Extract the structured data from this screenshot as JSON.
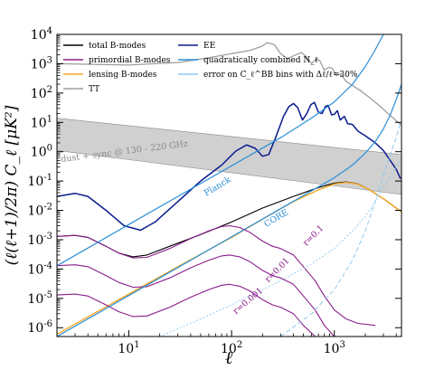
{
  "chart_data": {
    "type": "line",
    "xscale": "log",
    "yscale": "log",
    "xlim": [
      2,
      4500
    ],
    "ylim": [
      5e-07,
      10000
    ],
    "xlabel": "ℓ",
    "ylabel": "(ℓ(ℓ+1)/2π) C_ℓ [μK²]",
    "x_ticks": [
      {
        "value": 10,
        "base": "10",
        "exp": "1"
      },
      {
        "value": 100,
        "base": "10",
        "exp": "2"
      },
      {
        "value": 1000,
        "base": "10",
        "exp": "3"
      }
    ],
    "y_ticks": [
      {
        "value": 1e-06,
        "base": "10",
        "exp": "-6"
      },
      {
        "value": 1e-05,
        "base": "10",
        "exp": "-5"
      },
      {
        "value": 0.0001,
        "base": "10",
        "exp": "-4"
      },
      {
        "value": 0.001,
        "base": "10",
        "exp": "-3"
      },
      {
        "value": 0.01,
        "base": "10",
        "exp": "-2"
      },
      {
        "value": 0.1,
        "base": "10",
        "exp": "-1"
      },
      {
        "value": 1,
        "base": "10",
        "exp": "0"
      },
      {
        "value": 10,
        "base": "10",
        "exp": "1"
      },
      {
        "value": 100,
        "base": "10",
        "exp": "2"
      },
      {
        "value": 1000,
        "base": "10",
        "exp": "3"
      },
      {
        "value": 10000,
        "base": "10",
        "exp": "4"
      }
    ],
    "legend": {
      "placement": "top-left",
      "entries": [
        {
          "label": "total B-modes",
          "color": "#000000",
          "style": "solid"
        },
        {
          "label": "primordial B-modes",
          "color": "#8b1c8b",
          "style": "solid"
        },
        {
          "label": "lensing B-modes",
          "color": "#f5a623",
          "style": "solid"
        },
        {
          "label": "TT",
          "color": "#9e9e9e",
          "style": "solid"
        },
        {
          "label": "EE",
          "color": "#0a1a8c",
          "style": "solid"
        },
        {
          "label": "quadratically combined N_ℓ",
          "color": "#2a8fd8",
          "style": "solid"
        },
        {
          "label": "error on C_ℓ^BB bins with Δℓ/ℓ=30%",
          "color": "#8ec8f0",
          "style": "solid"
        }
      ]
    },
    "foreground_band": {
      "label": "dust + sync @ 130 - 220 GHz",
      "upper": [
        [
          2,
          14
        ],
        [
          4500,
          0.8
        ]
      ],
      "lower": [
        [
          2,
          1.1
        ],
        [
          4500,
          0.035
        ]
      ],
      "color": "#d0d0d0"
    },
    "series": [
      {
        "name": "TT",
        "color": "#9e9e9e",
        "width": 1.3,
        "points": [
          [
            2,
            1000
          ],
          [
            10,
            900
          ],
          [
            30,
            1100
          ],
          [
            60,
            1600
          ],
          [
            100,
            2200
          ],
          [
            150,
            2800
          ],
          [
            200,
            4000
          ],
          [
            220,
            5200
          ],
          [
            260,
            4500
          ],
          [
            300,
            2200
          ],
          [
            350,
            1500
          ],
          [
            420,
            2000
          ],
          [
            480,
            2400
          ],
          [
            540,
            1700
          ],
          [
            600,
            1000
          ],
          [
            660,
            1400
          ],
          [
            720,
            1300
          ],
          [
            800,
            600
          ],
          [
            880,
            750
          ],
          [
            950,
            700
          ],
          [
            1050,
            400
          ],
          [
            1150,
            450
          ],
          [
            1300,
            250
          ],
          [
            1500,
            180
          ],
          [
            1800,
            120
          ],
          [
            2200,
            70
          ],
          [
            2800,
            35
          ],
          [
            3500,
            17
          ],
          [
            4500,
            8
          ]
        ]
      },
      {
        "name": "EE",
        "color": "#0a1a8c",
        "width": 1.5,
        "points": [
          [
            2,
            0.03
          ],
          [
            3,
            0.038
          ],
          [
            4,
            0.03
          ],
          [
            6,
            0.01
          ],
          [
            9,
            0.003
          ],
          [
            13,
            0.0021
          ],
          [
            18,
            0.004
          ],
          [
            30,
            0.02
          ],
          [
            50,
            0.1
          ],
          [
            80,
            0.35
          ],
          [
            110,
            1.05
          ],
          [
            140,
            1.7
          ],
          [
            170,
            1.3
          ],
          [
            200,
            0.7
          ],
          [
            230,
            0.8
          ],
          [
            270,
            3.2
          ],
          [
            320,
            16
          ],
          [
            360,
            34
          ],
          [
            400,
            44
          ],
          [
            440,
            32
          ],
          [
            490,
            12
          ],
          [
            540,
            20
          ],
          [
            590,
            40
          ],
          [
            640,
            48
          ],
          [
            700,
            22
          ],
          [
            760,
            20
          ],
          [
            820,
            35
          ],
          [
            870,
            38
          ],
          [
            940,
            18
          ],
          [
            1000,
            19
          ],
          [
            1070,
            25
          ],
          [
            1140,
            12
          ],
          [
            1250,
            16
          ],
          [
            1350,
            9
          ],
          [
            1500,
            8.5
          ],
          [
            1700,
            5
          ],
          [
            2000,
            3.5
          ],
          [
            2500,
            2
          ],
          [
            3000,
            1.1
          ],
          [
            3500,
            0.5
          ],
          [
            4000,
            0.25
          ],
          [
            4400,
            0.12
          ]
        ]
      },
      {
        "name": "total B-modes",
        "color": "#000000",
        "width": 1.1,
        "points": [
          [
            2,
            0.0013
          ],
          [
            3,
            0.0014
          ],
          [
            4,
            0.0012
          ],
          [
            6,
            0.0006
          ],
          [
            8,
            0.00035
          ],
          [
            11,
            0.00026
          ],
          [
            15,
            0.0003
          ],
          [
            25,
            0.0006
          ],
          [
            50,
            0.0015
          ],
          [
            100,
            0.004
          ],
          [
            200,
            0.012
          ],
          [
            400,
            0.03
          ],
          [
            700,
            0.06
          ],
          [
            1000,
            0.085
          ],
          [
            1300,
            0.093
          ],
          [
            1700,
            0.08
          ],
          [
            2200,
            0.05
          ],
          [
            3000,
            0.025
          ],
          [
            4000,
            0.012
          ],
          [
            4500,
            0.009
          ]
        ]
      },
      {
        "name": "lensing B-modes",
        "color": "#f5a623",
        "width": 1.4,
        "points": [
          [
            2,
            6e-07
          ],
          [
            10,
            1.4e-05
          ],
          [
            30,
            0.00012
          ],
          [
            100,
            0.0012
          ],
          [
            200,
            0.005
          ],
          [
            400,
            0.02
          ],
          [
            700,
            0.05
          ],
          [
            1000,
            0.08
          ],
          [
            1300,
            0.09
          ],
          [
            1700,
            0.078
          ],
          [
            2200,
            0.05
          ],
          [
            3000,
            0.025
          ],
          [
            4000,
            0.012
          ],
          [
            4500,
            0.009
          ]
        ]
      },
      {
        "name": "primordial B-modes",
        "label": "r=0.1",
        "color": "#8b1c8b",
        "width": 1.1,
        "points": [
          [
            2,
            0.0013
          ],
          [
            3,
            0.0014
          ],
          [
            4,
            0.0012
          ],
          [
            6,
            0.0006
          ],
          [
            8,
            0.00035
          ],
          [
            11,
            0.00024
          ],
          [
            15,
            0.00025
          ],
          [
            25,
            0.0005
          ],
          [
            40,
            0.0011
          ],
          [
            60,
            0.002
          ],
          [
            80,
            0.0028
          ],
          [
            95,
            0.003
          ],
          [
            120,
            0.0026
          ],
          [
            150,
            0.0018
          ],
          [
            200,
            0.0009
          ],
          [
            250,
            0.0006
          ],
          [
            300,
            0.0005
          ],
          [
            400,
            0.0003
          ],
          [
            500,
            0.00012
          ],
          [
            650,
            4e-05
          ],
          [
            800,
            1.2e-05
          ],
          [
            1000,
            4e-06
          ],
          [
            1300,
            2e-06
          ],
          [
            1700,
            1.4e-06
          ],
          [
            2500,
            1.2e-06
          ]
        ]
      },
      {
        "name": "primordial B-modes",
        "label": "r=0.01",
        "color": "#8b1c8b",
        "width": 1.1,
        "points": [
          [
            2,
            0.00013
          ],
          [
            3,
            0.00014
          ],
          [
            4,
            0.00012
          ],
          [
            6,
            6e-05
          ],
          [
            8,
            3.5e-05
          ],
          [
            11,
            2.4e-05
          ],
          [
            15,
            2.5e-05
          ],
          [
            25,
            5e-05
          ],
          [
            40,
            0.00011
          ],
          [
            60,
            0.0002
          ],
          [
            80,
            0.00028
          ],
          [
            95,
            0.0003
          ],
          [
            120,
            0.00026
          ],
          [
            150,
            0.00018
          ],
          [
            200,
            9e-05
          ],
          [
            250,
            6e-05
          ],
          [
            300,
            5e-05
          ],
          [
            400,
            3e-05
          ],
          [
            500,
            1.2e-05
          ],
          [
            650,
            4e-06
          ],
          [
            800,
            1.2e-06
          ],
          [
            1000,
            5e-07
          ]
        ]
      },
      {
        "name": "primordial B-modes",
        "label": "r=0.001",
        "color": "#8b1c8b",
        "width": 1.1,
        "points": [
          [
            2,
            1.3e-05
          ],
          [
            3,
            1.4e-05
          ],
          [
            4,
            1.2e-05
          ],
          [
            6,
            6e-06
          ],
          [
            8,
            3.5e-06
          ],
          [
            11,
            2.4e-06
          ],
          [
            15,
            2.5e-06
          ],
          [
            25,
            5e-06
          ],
          [
            40,
            1.1e-05
          ],
          [
            60,
            2e-05
          ],
          [
            80,
            2.8e-05
          ],
          [
            95,
            3e-05
          ],
          [
            120,
            2.6e-05
          ],
          [
            150,
            1.8e-05
          ],
          [
            200,
            9e-06
          ],
          [
            250,
            6e-06
          ],
          [
            300,
            5e-06
          ],
          [
            400,
            3e-06
          ],
          [
            500,
            1.2e-06
          ],
          [
            650,
            5e-07
          ]
        ]
      },
      {
        "name": "quadratically combined N_ℓ",
        "label": "Planck",
        "color": "#2a8fd8",
        "width": 1.2,
        "points": [
          [
            2,
            0.00013
          ],
          [
            4,
            0.00052
          ],
          [
            10,
            0.0033
          ],
          [
            30,
            0.03
          ],
          [
            100,
            0.33
          ],
          [
            300,
            3
          ],
          [
            600,
            14
          ],
          [
            1000,
            50
          ],
          [
            1500,
            200
          ],
          [
            2000,
            800
          ],
          [
            2500,
            3000
          ],
          [
            3000,
            10000
          ]
        ]
      },
      {
        "name": "quadratically combined N_ℓ",
        "label": "CORE",
        "color": "#2a8fd8",
        "width": 1.2,
        "points": [
          [
            2,
            5e-07
          ],
          [
            10,
            1.25e-05
          ],
          [
            100,
            0.00125
          ],
          [
            500,
            0.032
          ],
          [
            1000,
            0.13
          ],
          [
            1500,
            0.35
          ],
          [
            2000,
            0.9
          ],
          [
            2500,
            2.2
          ],
          [
            3000,
            6
          ],
          [
            3500,
            18
          ],
          [
            4000,
            60
          ],
          [
            4500,
            200
          ]
        ]
      },
      {
        "name": "error on C_ℓ^BB bins with Δℓ/ℓ=30%",
        "label": "Planck",
        "color": "#8ec8f0",
        "width": 1.0,
        "dash": "5,3",
        "points": [
          [
            300,
            5e-07
          ],
          [
            600,
            3e-06
          ],
          [
            1000,
            2e-05
          ],
          [
            1500,
            0.0002
          ],
          [
            2000,
            0.002
          ],
          [
            2500,
            0.02
          ],
          [
            3000,
            0.15
          ],
          [
            3500,
            0.8
          ],
          [
            4000,
            3
          ],
          [
            4400,
            10
          ]
        ]
      },
      {
        "name": "error on C_ℓ^BB bins with Δℓ/ℓ=30%",
        "label": "CORE",
        "color": "#8ec8f0",
        "width": 0.9,
        "dash": "2,2",
        "points": [
          [
            20,
            5e-07
          ],
          [
            50,
            2e-06
          ],
          [
            100,
            6e-06
          ],
          [
            300,
            4e-05
          ],
          [
            600,
            0.00015
          ],
          [
            1000,
            0.0005
          ],
          [
            1500,
            0.002
          ],
          [
            2000,
            0.006
          ],
          [
            2500,
            0.02
          ],
          [
            3000,
            0.06
          ],
          [
            4000,
            0.3
          ],
          [
            4500,
            0.6
          ]
        ]
      }
    ],
    "annotations": [
      {
        "text": "Planck",
        "x": 75,
        "y": 0.055,
        "angle": -31,
        "color": "#2a8fd8"
      },
      {
        "text": "CORE",
        "x": 280,
        "y": 0.0045,
        "angle": -31,
        "color": "#2a8fd8"
      },
      {
        "text": "r=0.1",
        "x": 650,
        "y": 0.0012,
        "angle": -45,
        "color": "#8b1c8b"
      },
      {
        "text": "r=0.01",
        "x": 290,
        "y": 8e-05,
        "angle": -45,
        "color": "#8b1c8b"
      },
      {
        "text": "r=0.001",
        "x": 150,
        "y": 7e-06,
        "angle": -40,
        "color": "#8b1c8b"
      }
    ]
  }
}
